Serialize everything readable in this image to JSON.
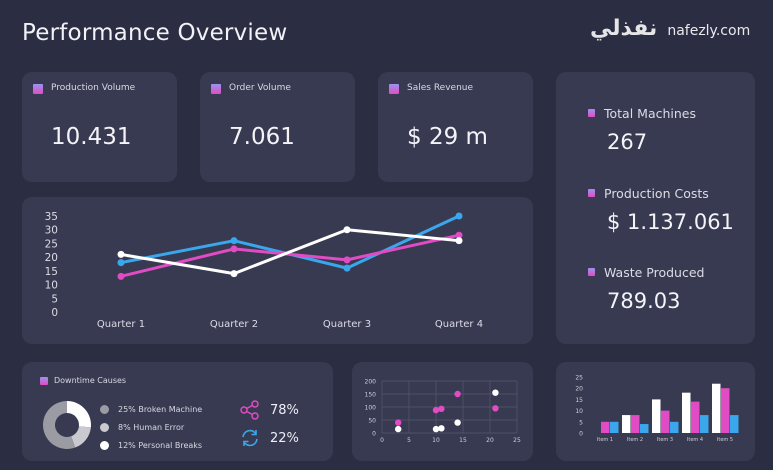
{
  "header": {
    "title": "Performance Overview"
  },
  "kpis": [
    {
      "label": "Production Volume",
      "value": "10.431"
    },
    {
      "label": "Order Volume",
      "value": "7.061"
    },
    {
      "label": "Sales Revenue",
      "value": "$ 29 m"
    }
  ],
  "side_stats": [
    {
      "label": "Total Machines",
      "value": "267"
    },
    {
      "label": "Production Costs",
      "value": "$ 1.137.061"
    },
    {
      "label": "Waste Produced",
      "value": "789.03"
    }
  ],
  "downtime": {
    "title": "Downtime Causes",
    "items": [
      {
        "label": "25% Broken Machine",
        "color": "#9b9ba3"
      },
      {
        "label": "8% Human Error",
        "color": "#c9c9cf"
      },
      {
        "label": "12% Personal Breaks",
        "color": "#ffffff"
      }
    ],
    "share_icon": "share-icon",
    "share_value": "78%",
    "refresh_icon": "refresh-icon",
    "refresh_value": "22%"
  },
  "colors": {
    "blue": "#3aa7ec",
    "pink": "#e14bc4",
    "white": "#ffffff",
    "background": "#2b2d43",
    "card": "#383a51"
  },
  "watermark": {
    "arabic": "نفذلي",
    "latin": "nafezly.com"
  },
  "chart_data": [
    {
      "type": "line",
      "title": "",
      "categories": [
        "Quarter 1",
        "Quarter 2",
        "Quarter 3",
        "Quarter 4"
      ],
      "yticks": [
        "0",
        "5",
        "10",
        "15",
        "20",
        "25",
        "30",
        "35"
      ],
      "ylim": [
        0,
        35
      ],
      "series": [
        {
          "name": "blue",
          "color": "#3aa7ec",
          "values": [
            18,
            26,
            16,
            35
          ]
        },
        {
          "name": "pink",
          "color": "#e14bc4",
          "values": [
            13,
            23,
            19,
            28
          ]
        },
        {
          "name": "white",
          "color": "#ffffff",
          "values": [
            21,
            14,
            30,
            26
          ]
        }
      ]
    },
    {
      "type": "pie",
      "title": "Downtime Causes",
      "labels": [
        "Broken Machine",
        "Human Error",
        "Personal Breaks"
      ],
      "values": [
        25,
        8,
        12
      ],
      "colors": [
        "#9b9ba3",
        "#c9c9cf",
        "#ffffff"
      ]
    },
    {
      "type": "scatter",
      "xlim": [
        0,
        25
      ],
      "ylim": [
        0,
        200
      ],
      "xticks": [
        "0",
        "5",
        "10",
        "15",
        "20",
        "25"
      ],
      "yticks": [
        "0",
        "50",
        "100",
        "150",
        "200"
      ],
      "grid": true,
      "series": [
        {
          "name": "pink",
          "color": "#e14bc4",
          "points": [
            [
              3,
              40
            ],
            [
              10,
              88
            ],
            [
              11,
              93
            ],
            [
              14,
              150
            ],
            [
              21,
              95
            ]
          ]
        },
        {
          "name": "white",
          "color": "#ffffff",
          "points": [
            [
              3,
              15
            ],
            [
              10,
              15
            ],
            [
              11,
              18
            ],
            [
              14,
              40
            ],
            [
              21,
              155
            ]
          ]
        }
      ]
    },
    {
      "type": "bar",
      "categories": [
        "Item 1",
        "Item 2",
        "Item 3",
        "Item 4",
        "Item 5"
      ],
      "ylim": [
        0,
        25
      ],
      "yticks": [
        "0",
        "5",
        "10",
        "15",
        "20",
        "25"
      ],
      "series": [
        {
          "name": "white",
          "color": "#ffffff",
          "values": [
            0,
            8,
            15,
            18,
            22
          ]
        },
        {
          "name": "pink",
          "color": "#e14bc4",
          "values": [
            5,
            8,
            10,
            14,
            20
          ]
        },
        {
          "name": "blue",
          "color": "#3aa7ec",
          "values": [
            5,
            4,
            5,
            8,
            8
          ]
        }
      ]
    }
  ]
}
